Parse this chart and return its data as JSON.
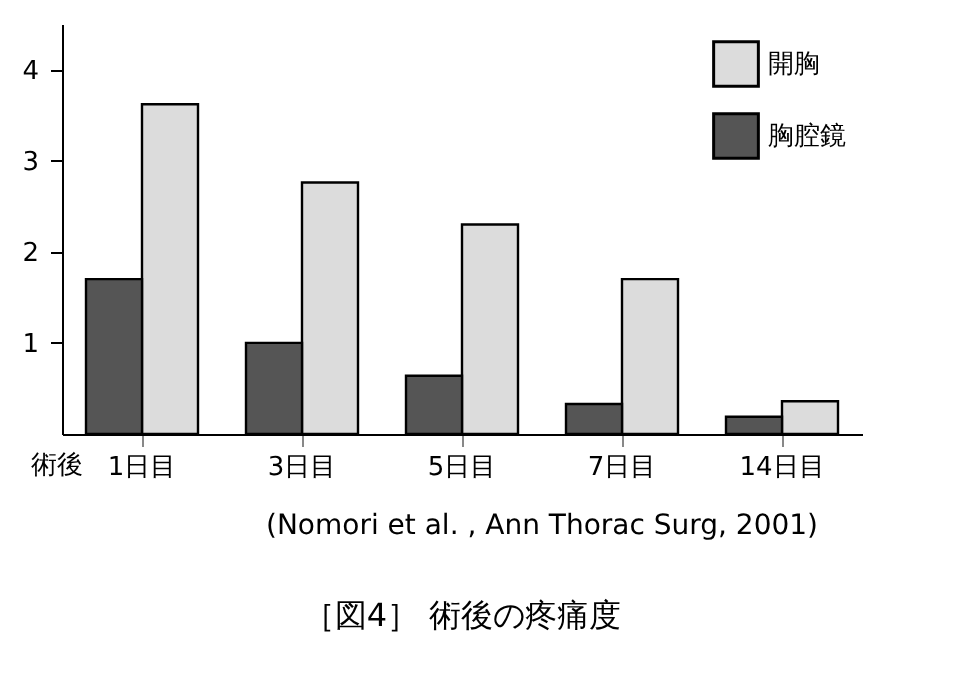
{
  "chart_data": {
    "type": "bar",
    "title": "［図4］ 術後の疼痛度",
    "xlabel": "術後",
    "annotations": [
      "(Nomori et al. , Ann Thorac Surg, 2001)"
    ],
    "categories": [
      "1日目",
      "3日目",
      "5日目",
      "7日目",
      "14日目"
    ],
    "series": [
      {
        "name": "開胸",
        "color": "#dcdcdc",
        "values": [
          3.62,
          2.76,
          2.3,
          1.7,
          0.36
        ]
      },
      {
        "name": "胸腔鏡",
        "color": "#555555",
        "values": [
          1.7,
          1.0,
          0.64,
          0.33,
          0.19
        ]
      }
    ],
    "ylim": [
      0,
      4.5
    ],
    "yticks": [
      1,
      2,
      3,
      4
    ],
    "grid": false,
    "legend": "top right"
  }
}
